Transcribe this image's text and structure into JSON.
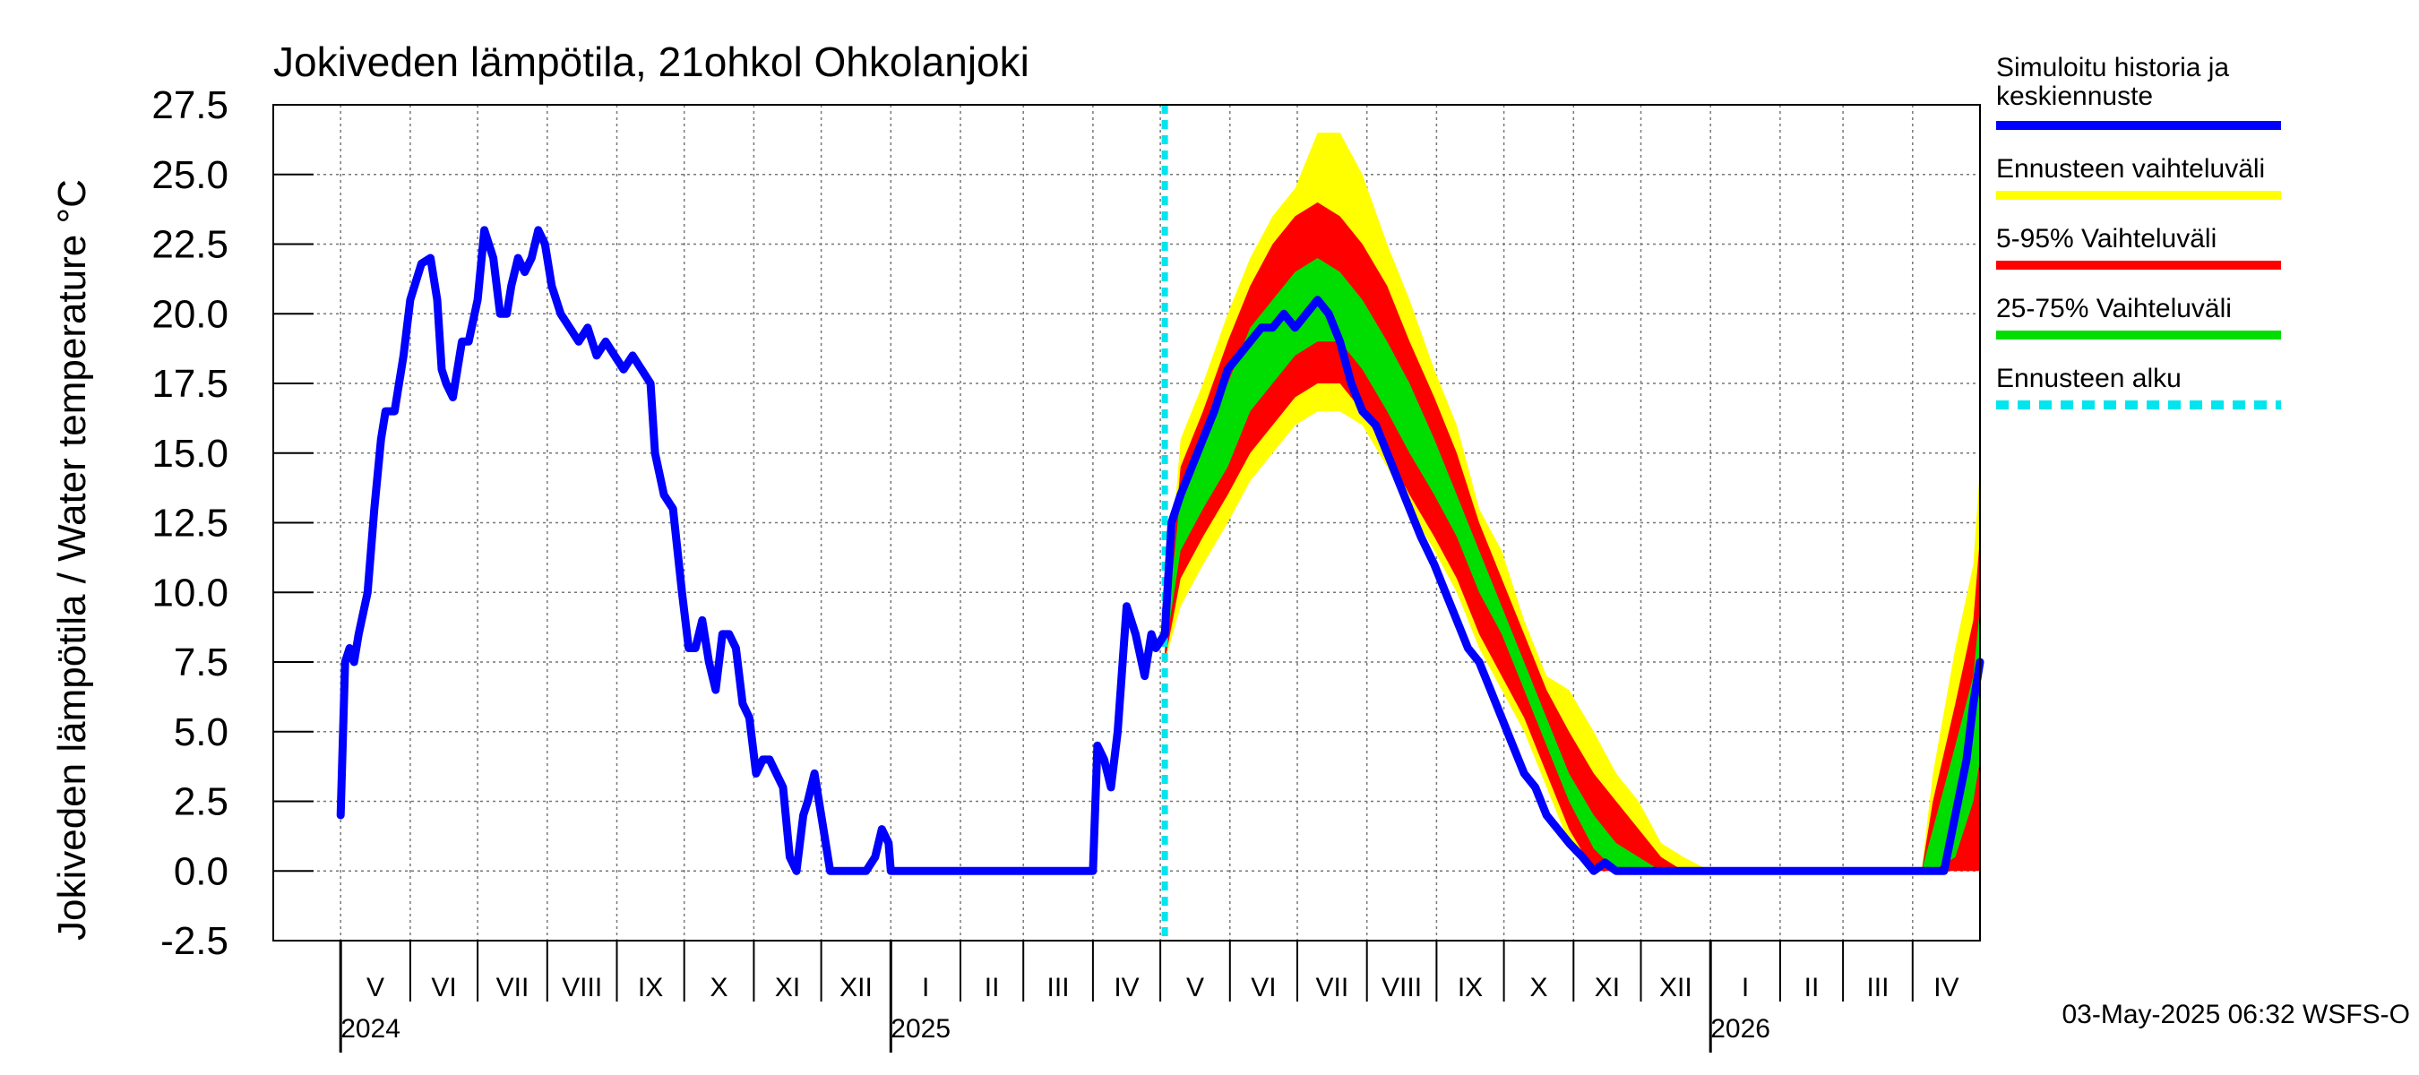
{
  "chart_data": {
    "type": "area",
    "title": "Jokiveden lämpötila, 21ohkol Ohkolanjoki",
    "ylabel": "Jokiveden lämpötila / Water temperature   °C",
    "xlabel": "",
    "ylim": [
      -2.5,
      27.5
    ],
    "yticks": [
      "27.5",
      "25.0",
      "22.5",
      "20.0",
      "17.5",
      "15.0",
      "12.5",
      "10.0",
      "7.5",
      "5.0",
      "2.5",
      "0.0",
      "-2.5"
    ],
    "xlim": [
      "2024-04-01",
      "2026-05-01"
    ],
    "months": [
      {
        "label": "V",
        "start": "2024-05-01"
      },
      {
        "label": "VI",
        "start": "2024-06-01"
      },
      {
        "label": "VII",
        "start": "2024-07-01"
      },
      {
        "label": "VIII",
        "start": "2024-08-01"
      },
      {
        "label": "IX",
        "start": "2024-09-01"
      },
      {
        "label": "X",
        "start": "2024-10-01"
      },
      {
        "label": "XI",
        "start": "2024-11-01"
      },
      {
        "label": "XII",
        "start": "2024-12-01"
      },
      {
        "label": "I",
        "start": "2025-01-01"
      },
      {
        "label": "II",
        "start": "2025-02-01"
      },
      {
        "label": "III",
        "start": "2025-03-01"
      },
      {
        "label": "IV",
        "start": "2025-04-01"
      },
      {
        "label": "V",
        "start": "2025-05-01"
      },
      {
        "label": "VI",
        "start": "2025-06-01"
      },
      {
        "label": "VII",
        "start": "2025-07-01"
      },
      {
        "label": "VIII",
        "start": "2025-08-01"
      },
      {
        "label": "IX",
        "start": "2025-09-01"
      },
      {
        "label": "X",
        "start": "2025-10-01"
      },
      {
        "label": "XI",
        "start": "2025-11-01"
      },
      {
        "label": "XII",
        "start": "2025-12-01"
      },
      {
        "label": "I",
        "start": "2026-01-01"
      },
      {
        "label": "II",
        "start": "2026-02-01"
      },
      {
        "label": "III",
        "start": "2026-03-01"
      },
      {
        "label": "IV",
        "start": "2026-04-01"
      }
    ],
    "years": [
      {
        "label": "2024",
        "date": "2024-05-01"
      },
      {
        "label": "2025",
        "date": "2025-01-01"
      },
      {
        "label": "2026",
        "date": "2026-01-01"
      }
    ],
    "forecast_start": "2025-05-03",
    "series": [
      {
        "name": "Simuloitu historia ja keskiennuste",
        "color": "#0000ff",
        "x": [
          "2024-05-01",
          "2024-05-03",
          "2024-05-05",
          "2024-05-07",
          "2024-05-09",
          "2024-05-13",
          "2024-05-16",
          "2024-05-19",
          "2024-05-21",
          "2024-05-25",
          "2024-05-29",
          "2024-06-01",
          "2024-06-06",
          "2024-06-10",
          "2024-06-13",
          "2024-06-15",
          "2024-06-17",
          "2024-06-20",
          "2024-06-24",
          "2024-06-27",
          "2024-07-01",
          "2024-07-04",
          "2024-07-08",
          "2024-07-11",
          "2024-07-14",
          "2024-07-16",
          "2024-07-19",
          "2024-07-22",
          "2024-07-25",
          "2024-07-28",
          "2024-07-31",
          "2024-08-03",
          "2024-08-07",
          "2024-08-11",
          "2024-08-15",
          "2024-08-19",
          "2024-08-23",
          "2024-08-27",
          "2024-08-31",
          "2024-09-04",
          "2024-09-08",
          "2024-09-12",
          "2024-09-16",
          "2024-09-18",
          "2024-09-22",
          "2024-09-26",
          "2024-09-30",
          "2024-10-03",
          "2024-10-06",
          "2024-10-09",
          "2024-10-12",
          "2024-10-15",
          "2024-10-18",
          "2024-10-21",
          "2024-10-24",
          "2024-10-27",
          "2024-10-30",
          "2024-11-02",
          "2024-11-05",
          "2024-11-08",
          "2024-11-11",
          "2024-11-14",
          "2024-11-17",
          "2024-11-20",
          "2024-11-23",
          "2024-11-25",
          "2024-11-28",
          "2024-12-01",
          "2024-12-05",
          "2024-12-09",
          "2024-12-13",
          "2024-12-17",
          "2024-12-21",
          "2024-12-25",
          "2024-12-28",
          "2024-12-31",
          "2025-01-01",
          "2025-02-01",
          "2025-03-01",
          "2025-03-25",
          "2025-04-01",
          "2025-04-03",
          "2025-04-06",
          "2025-04-09",
          "2025-04-12",
          "2025-04-16",
          "2025-04-20",
          "2025-04-24",
          "2025-04-27",
          "2025-04-29",
          "2025-05-03",
          "2025-05-06",
          "2025-05-10",
          "2025-05-15",
          "2025-05-20",
          "2025-05-25",
          "2025-05-31",
          "2025-06-05",
          "2025-06-10",
          "2025-06-15",
          "2025-06-20",
          "2025-06-25",
          "2025-06-30",
          "2025-07-05",
          "2025-07-10",
          "2025-07-15",
          "2025-07-20",
          "2025-07-25",
          "2025-07-30",
          "2025-08-05",
          "2025-08-10",
          "2025-08-15",
          "2025-08-20",
          "2025-08-25",
          "2025-08-31",
          "2025-09-05",
          "2025-09-10",
          "2025-09-15",
          "2025-09-20",
          "2025-09-25",
          "2025-09-30",
          "2025-10-05",
          "2025-10-10",
          "2025-10-15",
          "2025-10-20",
          "2025-10-25",
          "2025-10-30",
          "2025-11-05",
          "2025-11-10",
          "2025-11-15",
          "2025-11-20",
          "2025-11-25",
          "2025-11-30",
          "2025-12-05",
          "2025-12-10",
          "2025-12-15",
          "2026-01-15",
          "2026-02-15",
          "2026-03-15",
          "2026-04-10",
          "2026-04-15",
          "2026-04-20",
          "2026-04-25",
          "2026-04-28",
          "2026-05-01"
        ],
        "values": [
          2.0,
          7.5,
          8.0,
          7.5,
          8.5,
          10.0,
          13.0,
          15.5,
          16.5,
          16.5,
          18.5,
          20.5,
          21.8,
          22.0,
          20.5,
          18.0,
          17.5,
          17.0,
          19.0,
          19.0,
          20.5,
          23.0,
          22.0,
          20.0,
          20.0,
          21.0,
          22.0,
          21.5,
          22.0,
          23.0,
          22.5,
          21.0,
          20.0,
          19.5,
          19.0,
          19.5,
          18.5,
          19.0,
          18.5,
          18.0,
          18.5,
          18.0,
          17.5,
          15.0,
          13.5,
          13.0,
          10.0,
          8.0,
          8.0,
          9.0,
          7.5,
          6.5,
          8.5,
          8.5,
          8.0,
          6.0,
          5.5,
          3.5,
          4.0,
          4.0,
          3.5,
          3.0,
          0.5,
          0.0,
          2.0,
          2.5,
          3.5,
          2.0,
          0.0,
          0.0,
          0.0,
          0.0,
          0.0,
          0.5,
          1.5,
          1.0,
          0.0,
          0.0,
          0.0,
          0.0,
          0.0,
          4.5,
          4.0,
          3.0,
          5.0,
          9.5,
          8.5,
          7.0,
          8.5,
          8.0,
          8.5,
          12.5,
          13.5,
          14.5,
          15.5,
          16.5,
          18.0,
          18.5,
          19.0,
          19.5,
          19.5,
          20.0,
          19.5,
          20.0,
          20.5,
          20.0,
          19.0,
          17.5,
          16.5,
          16.0,
          15.0,
          14.0,
          13.0,
          12.0,
          11.0,
          10.0,
          9.0,
          8.0,
          7.5,
          6.5,
          5.5,
          4.5,
          3.5,
          3.0,
          2.0,
          1.5,
          1.0,
          0.5,
          0.0,
          0.3,
          0.0,
          0.0,
          0.0,
          0.0,
          0.0,
          0.0,
          0.0,
          0.0,
          0.0,
          0.0,
          0.0,
          2.0,
          4.0,
          6.0,
          7.5
        ]
      },
      {
        "name": "Ennusteen vaihteluväli",
        "color": "#ffff00",
        "x": [
          "2025-05-03",
          "2025-05-10",
          "2025-05-20",
          "2025-05-31",
          "2025-06-10",
          "2025-06-20",
          "2025-06-30",
          "2025-07-10",
          "2025-07-20",
          "2025-07-30",
          "2025-08-10",
          "2025-08-20",
          "2025-08-31",
          "2025-09-10",
          "2025-09-20",
          "2025-09-30",
          "2025-10-10",
          "2025-10-20",
          "2025-10-30",
          "2025-11-10",
          "2025-11-20",
          "2025-11-30",
          "2025-12-10",
          "2025-12-20",
          "2026-01-01",
          "2026-04-05",
          "2026-04-10",
          "2026-04-20",
          "2026-04-28",
          "2026-05-01"
        ],
        "lower": [
          7.5,
          9.5,
          11.0,
          12.5,
          14.0,
          15.0,
          16.0,
          16.5,
          16.5,
          16.0,
          14.5,
          13.0,
          11.5,
          10.0,
          8.0,
          6.5,
          5.0,
          3.0,
          1.0,
          0.0,
          0.0,
          0.0,
          0.0,
          0.0,
          0.0,
          0.0,
          0.0,
          0.0,
          0.0,
          0.0
        ],
        "upper": [
          8.5,
          15.5,
          17.5,
          20.0,
          22.0,
          23.5,
          24.5,
          26.5,
          26.5,
          25.0,
          22.5,
          20.5,
          18.0,
          16.0,
          13.0,
          11.5,
          9.0,
          7.0,
          6.5,
          5.0,
          3.5,
          2.5,
          1.0,
          0.5,
          0.0,
          0.0,
          3.5,
          8.0,
          11.0,
          14.5
        ]
      },
      {
        "name": "5-95% Vaihteluväli",
        "color": "#ff0000",
        "x": [
          "2025-05-03",
          "2025-05-10",
          "2025-05-20",
          "2025-05-31",
          "2025-06-10",
          "2025-06-20",
          "2025-06-30",
          "2025-07-10",
          "2025-07-20",
          "2025-07-30",
          "2025-08-10",
          "2025-08-20",
          "2025-08-31",
          "2025-09-10",
          "2025-09-20",
          "2025-09-30",
          "2025-10-10",
          "2025-10-20",
          "2025-10-30",
          "2025-11-10",
          "2025-11-20",
          "2025-11-30",
          "2025-12-10",
          "2025-12-20",
          "2026-01-01",
          "2026-04-05",
          "2026-04-10",
          "2026-04-20",
          "2026-04-28",
          "2026-05-01"
        ],
        "lower": [
          7.5,
          10.5,
          12.0,
          13.5,
          15.0,
          16.0,
          17.0,
          17.5,
          17.5,
          16.5,
          15.0,
          13.5,
          12.0,
          10.5,
          8.5,
          7.0,
          5.5,
          3.5,
          1.5,
          0.0,
          0.0,
          0.0,
          0.0,
          0.0,
          0.0,
          0.0,
          0.0,
          0.0,
          0.0,
          0.0
        ],
        "upper": [
          8.0,
          14.5,
          16.5,
          19.0,
          21.0,
          22.5,
          23.5,
          24.0,
          23.5,
          22.5,
          21.0,
          19.0,
          17.0,
          15.0,
          12.5,
          10.5,
          8.5,
          6.5,
          5.0,
          3.5,
          2.5,
          1.5,
          0.5,
          0.0,
          0.0,
          0.0,
          2.5,
          6.0,
          9.0,
          12.0
        ]
      },
      {
        "name": "25-75% Vaihteluväli",
        "color": "#00dd00",
        "x": [
          "2025-05-03",
          "2025-05-10",
          "2025-05-20",
          "2025-05-31",
          "2025-06-10",
          "2025-06-20",
          "2025-06-30",
          "2025-07-10",
          "2025-07-20",
          "2025-07-30",
          "2025-08-10",
          "2025-08-20",
          "2025-08-31",
          "2025-09-10",
          "2025-09-20",
          "2025-09-30",
          "2025-10-10",
          "2025-10-20",
          "2025-10-30",
          "2025-11-10",
          "2025-11-20",
          "2025-11-30",
          "2025-12-10",
          "2025-12-20",
          "2026-01-01",
          "2026-04-05",
          "2026-04-10",
          "2026-04-20",
          "2026-04-28",
          "2026-05-01"
        ],
        "lower": [
          7.8,
          11.5,
          13.0,
          14.5,
          16.5,
          17.5,
          18.5,
          19.0,
          19.0,
          18.0,
          16.5,
          15.0,
          13.5,
          12.0,
          10.0,
          8.5,
          6.5,
          4.5,
          2.5,
          0.8,
          0.0,
          0.0,
          0.0,
          0.0,
          0.0,
          0.0,
          0.0,
          0.5,
          2.5,
          4.0
        ],
        "upper": [
          8.0,
          13.5,
          15.5,
          17.5,
          19.5,
          20.5,
          21.5,
          22.0,
          21.5,
          20.5,
          19.0,
          17.5,
          15.5,
          13.5,
          11.5,
          9.5,
          7.5,
          5.5,
          3.5,
          2.0,
          1.0,
          0.5,
          0.0,
          0.0,
          0.0,
          0.0,
          1.5,
          4.5,
          7.0,
          9.5
        ]
      }
    ],
    "legend": [
      {
        "label": "Simuloitu historia ja",
        "label2": "keskiennuste",
        "color": "#0000ff",
        "style": "solid"
      },
      {
        "label": "Ennusteen vaihteluväli",
        "color": "#ffff00",
        "style": "solid"
      },
      {
        "label": "5-95% Vaihteluväli",
        "color": "#ff0000",
        "style": "solid"
      },
      {
        "label": "25-75% Vaihteluväli",
        "color": "#00dd00",
        "style": "solid"
      },
      {
        "label": "Ennusteen alku",
        "color": "#00e5ee",
        "style": "dashed"
      }
    ],
    "grid": true,
    "legend_position": "right"
  },
  "footer": "03-May-2025 06:32 WSFS-O"
}
